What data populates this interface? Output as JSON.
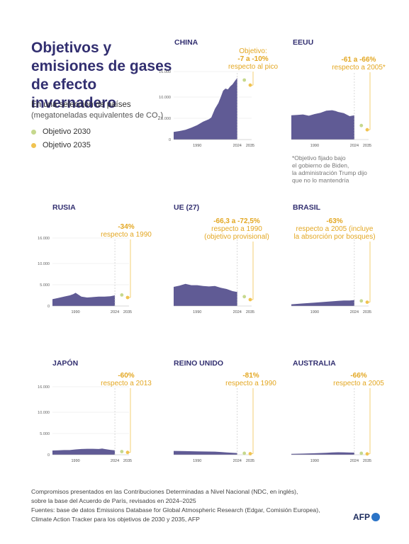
{
  "header": {
    "title": "Objetivos y emisiones de gases de efecto invernadero",
    "subtitle": "En una selección de países",
    "units_main": "(megatoneladas equivalentes de CO",
    "units_sub": "2",
    "units_close": ")"
  },
  "legend": {
    "obj2030": "Objetivo 2030",
    "obj2035": "Objetivo 2035"
  },
  "colors": {
    "emissions": "#605b95",
    "objetivo_2030": "#c6d88d",
    "objetivo_2035": "#f0c350",
    "target_text": "#e3a722",
    "country": "#322f70"
  },
  "note": {
    "lines": [
      "*Objetivo fijado bajo",
      "el gobierno de Biden,",
      "la administración Trump dijo",
      "que no lo mantendría"
    ]
  },
  "footer": {
    "lines": [
      "Compromisos presentados en las Contribuciones Determinadas a Nivel Nacional (NDC, en inglés),",
      "sobre la base del Acuerdo de París, revisados en 2024–2025",
      "Fuentes: base de datos Emissions Database for Global Atmospheric Research (Edgar, Comisión Europea),",
      "Climate Action Tracker para los objetivos de 2030 y 2035, AFP"
    ],
    "logo": "AFP"
  },
  "chart_data": [
    {
      "type": "area",
      "country": "CHINA",
      "target_lines": [
        "Objetivo:",
        "-7 a -10%",
        "respecto al pico"
      ],
      "yticks": [
        0,
        5000,
        10000,
        16000
      ],
      "ytick_labels": [
        "0",
        "5.000",
        "10.000",
        "16.000"
      ],
      "xticks": [
        1990,
        2024,
        2035
      ],
      "ylim": [
        0,
        16000
      ],
      "xlim": [
        1970,
        2035
      ],
      "x": [
        1970,
        1975,
        1980,
        1985,
        1990,
        1995,
        2000,
        2002,
        2005,
        2008,
        2010,
        2012,
        2014,
        2016,
        2018,
        2020,
        2022,
        2024
      ],
      "values": [
        1800,
        2000,
        2300,
        2800,
        3400,
        4200,
        4800,
        5200,
        7200,
        8600,
        10000,
        11500,
        12000,
        11800,
        12500,
        13000,
        13800,
        14500
      ],
      "target_2030": 14000,
      "target_2035": 12800
    },
    {
      "type": "area",
      "country": "EEUU",
      "target_lines": [
        "-61 a -66%",
        "respecto a 2005*"
      ],
      "xticks": [
        1990,
        2024,
        2035
      ],
      "ylim": [
        0,
        16000
      ],
      "xlim": [
        1970,
        2035
      ],
      "x": [
        1970,
        1975,
        1980,
        1985,
        1990,
        1995,
        2000,
        2005,
        2008,
        2010,
        2015,
        2020,
        2024
      ],
      "values": [
        5700,
        5800,
        5900,
        5600,
        6000,
        6300,
        6800,
        6900,
        6700,
        6500,
        6200,
        5500,
        5700
      ],
      "target_2030": 3300,
      "target_2035": 2300
    },
    {
      "type": "area",
      "country": "RUSIA",
      "target_lines": [
        "-34%",
        "respecto a 1990"
      ],
      "yticks": [
        0,
        5000,
        10000,
        16000
      ],
      "ytick_labels": [
        "0",
        "5.000",
        "10.000",
        "16.000"
      ],
      "xticks": [
        1990,
        2024,
        2035
      ],
      "ylim": [
        0,
        16000
      ],
      "xlim": [
        1970,
        2035
      ],
      "x": [
        1970,
        1975,
        1980,
        1985,
        1988,
        1990,
        1995,
        2000,
        2005,
        2010,
        2015,
        2020,
        2024
      ],
      "values": [
        1600,
        1900,
        2200,
        2500,
        2800,
        3100,
        2200,
        2000,
        2100,
        2200,
        2200,
        2300,
        2500
      ],
      "target_2030": 2600,
      "target_2035": 2000
    },
    {
      "type": "area",
      "country": "UE (27)",
      "target_lines": [
        "-66,3 a -72,5%",
        "respecto a 1990",
        "(objetivo provisional)"
      ],
      "xticks": [
        1990,
        2024,
        2035
      ],
      "ylim": [
        0,
        16000
      ],
      "xlim": [
        1970,
        2035
      ],
      "x": [
        1970,
        1975,
        1980,
        1985,
        1990,
        1995,
        2000,
        2005,
        2010,
        2015,
        2020,
        2024
      ],
      "values": [
        4500,
        4800,
        5200,
        4900,
        4900,
        4700,
        4600,
        4700,
        4300,
        4000,
        3500,
        3300
      ],
      "target_2030": 2200,
      "target_2035": 1500
    },
    {
      "type": "area",
      "country": "BRASIL",
      "target_lines": [
        "-63%",
        "respecto a 2005 (incluye",
        "la absorción por bosques)"
      ],
      "xticks": [
        1990,
        2024,
        2035
      ],
      "ylim": [
        0,
        16000
      ],
      "xlim": [
        1970,
        2035
      ],
      "x": [
        1970,
        1980,
        1990,
        2000,
        2005,
        2010,
        2015,
        2020,
        2024
      ],
      "values": [
        400,
        600,
        800,
        1000,
        1100,
        1200,
        1300,
        1300,
        1400
      ],
      "target_2030": 1200,
      "target_2035": 900
    },
    {
      "type": "area",
      "country": "JAPÓN",
      "target_lines": [
        "-60%",
        "respecto a 2013"
      ],
      "yticks": [
        0,
        5000,
        10000,
        16000
      ],
      "ytick_labels": [
        "0",
        "5.000",
        "10.000",
        "16.000"
      ],
      "xticks": [
        1990,
        2024,
        2035
      ],
      "ylim": [
        0,
        16000
      ],
      "xlim": [
        1970,
        2035
      ],
      "x": [
        1970,
        1975,
        1980,
        1985,
        1990,
        1995,
        2000,
        2005,
        2010,
        2013,
        2015,
        2020,
        2024
      ],
      "values": [
        1000,
        1050,
        1100,
        1100,
        1250,
        1350,
        1400,
        1400,
        1350,
        1450,
        1350,
        1150,
        1050
      ],
      "target_2030": 750,
      "target_2035": 550
    },
    {
      "type": "area",
      "country": "REINO UNIDO",
      "target_lines": [
        "-81%",
        "respecto a 1990"
      ],
      "xticks": [
        1990,
        2024,
        2035
      ],
      "ylim": [
        0,
        16000
      ],
      "xlim": [
        1970,
        2035
      ],
      "x": [
        1970,
        1980,
        1990,
        2000,
        2005,
        2010,
        2015,
        2020,
        2024
      ],
      "values": [
        900,
        850,
        800,
        750,
        720,
        650,
        550,
        450,
        400
      ],
      "target_2030": 350,
      "target_2035": 250
    },
    {
      "type": "area",
      "country": "AUSTRALIA",
      "target_lines": [
        "-66%",
        "respecto a 2005"
      ],
      "xticks": [
        1990,
        2024,
        2035
      ],
      "ylim": [
        0,
        16000
      ],
      "xlim": [
        1970,
        2035
      ],
      "x": [
        1970,
        1980,
        1990,
        2000,
        2005,
        2010,
        2015,
        2020,
        2024
      ],
      "values": [
        200,
        280,
        350,
        450,
        550,
        580,
        560,
        530,
        500
      ],
      "target_2030": 350,
      "target_2035": 200
    }
  ]
}
